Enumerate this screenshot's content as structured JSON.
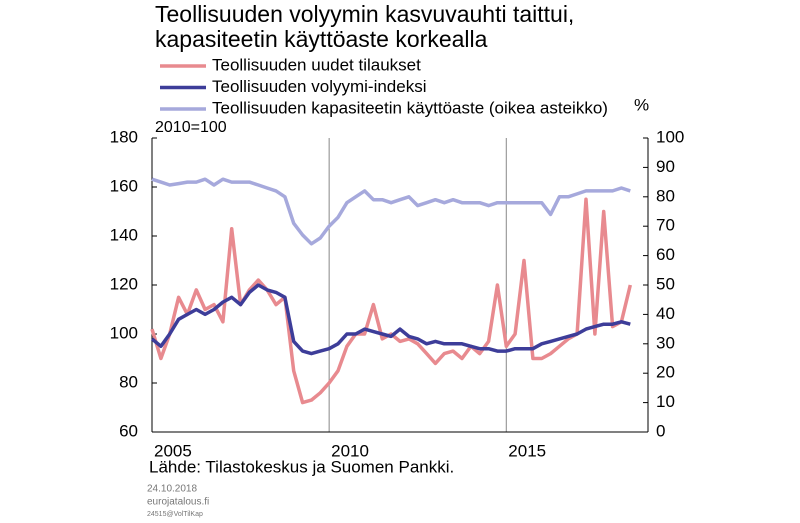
{
  "chart_data": {
    "type": "line",
    "title": [
      "Teollisuuden volyymin kasvuvauhti taittui,",
      "kapasiteetin käyttöaste korkealla"
    ],
    "y_note": "2010=100",
    "y2_label": "%",
    "source": "Lähde:  Tilastokeskus  ja  Suomen  Pankki.",
    "footer": [
      "24.10.2018",
      "eurojatalous.fi",
      "24515@VolTilKap"
    ],
    "x": [
      2005,
      2005.25,
      2005.5,
      2005.75,
      2006,
      2006.25,
      2006.5,
      2006.75,
      2007,
      2007.25,
      2007.5,
      2007.75,
      2008,
      2008.25,
      2008.5,
      2008.75,
      2009,
      2009.25,
      2009.5,
      2009.75,
      2010,
      2010.25,
      2010.5,
      2010.75,
      2011,
      2011.25,
      2011.5,
      2011.75,
      2012,
      2012.25,
      2012.5,
      2012.75,
      2013,
      2013.25,
      2013.5,
      2013.75,
      2014,
      2014.25,
      2014.5,
      2014.75,
      2015,
      2015.25,
      2015.5,
      2015.75,
      2016,
      2016.25,
      2016.5,
      2016.75,
      2017,
      2017.25,
      2017.5,
      2017.75,
      2018,
      2018.25,
      2018.5
    ],
    "xlim": [
      2005,
      2019
    ],
    "xticks": [
      2005,
      2010,
      2015
    ],
    "ylim": [
      60,
      180
    ],
    "yticks": [
      60,
      80,
      100,
      120,
      140,
      160,
      180
    ],
    "y2lim": [
      0,
      100
    ],
    "y2ticks": [
      0,
      10,
      20,
      30,
      40,
      50,
      60,
      70,
      80,
      90,
      100
    ],
    "grid": "x",
    "series": [
      {
        "name": "Teollisuuden uudet tilaukset",
        "color": "#e88a8f",
        "values": [
          102,
          90,
          100,
          115,
          108,
          118,
          110,
          112,
          105,
          143,
          112,
          118,
          122,
          118,
          112,
          115,
          85,
          72,
          73,
          76,
          80,
          85,
          95,
          100,
          100,
          112,
          98,
          100,
          97,
          98,
          96,
          92,
          88,
          92,
          93,
          90,
          95,
          92,
          97,
          120,
          95,
          100,
          130,
          90,
          90,
          92,
          95,
          98,
          100,
          155,
          100,
          150,
          103,
          105,
          120
        ]
      },
      {
        "name": "Teollisuuden volyymi-indeksi",
        "color": "#3d3d99",
        "values": [
          98,
          95,
          100,
          106,
          108,
          110,
          108,
          110,
          113,
          115,
          112,
          117,
          120,
          118,
          117,
          115,
          97,
          93,
          92,
          93,
          94,
          96,
          100,
          100,
          102,
          101,
          100,
          99,
          102,
          99,
          98,
          96,
          97,
          96,
          96,
          96,
          95,
          94,
          94,
          93,
          93,
          94,
          94,
          94,
          96,
          97,
          98,
          99,
          100,
          102,
          103,
          104,
          104,
          105,
          104
        ]
      },
      {
        "name": "Teollisuuden kapasiteetin käyttöaste (oikea asteikko)",
        "color": "#a6a9dc",
        "axis": "y2",
        "values": [
          86,
          85,
          84,
          84.5,
          85,
          85,
          86,
          84,
          86,
          85,
          85,
          85,
          84,
          83,
          82,
          80,
          71,
          67,
          64,
          66,
          70,
          73,
          78,
          80,
          82,
          79,
          79,
          78,
          79,
          80,
          77,
          78,
          79,
          78,
          79,
          78,
          78,
          78,
          77,
          78,
          78,
          78,
          78,
          78,
          78,
          74,
          80,
          80,
          81,
          82,
          82,
          82,
          82,
          83,
          82
        ]
      }
    ]
  }
}
